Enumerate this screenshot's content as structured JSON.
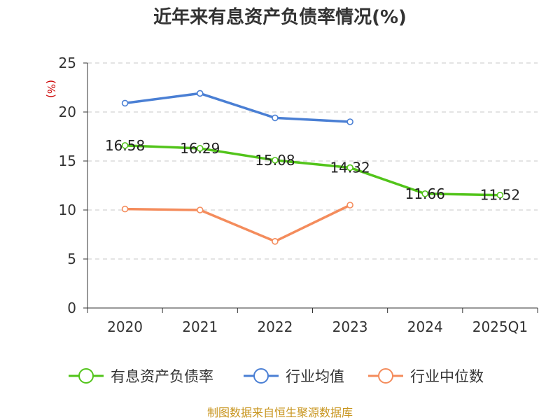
{
  "chart_data": {
    "type": "line",
    "title": "近年来有息资产负债率情况(%)",
    "ylabel": "(%)",
    "xlabel": "",
    "ylim": [
      0,
      25
    ],
    "yticks": [
      0,
      5,
      10,
      15,
      20,
      25
    ],
    "grid": true,
    "categories": [
      "2020",
      "2021",
      "2022",
      "2023",
      "2024",
      "2025Q1"
    ],
    "series": [
      {
        "name": "有息资产负债率",
        "color": "#52c41a",
        "values": [
          16.58,
          16.29,
          15.08,
          14.32,
          11.66,
          11.52
        ],
        "data_labels": [
          "16.58",
          "16.29",
          "15.08",
          "14.32",
          "11.66",
          "11.52"
        ]
      },
      {
        "name": "行业均值",
        "color": "#4a7fd4",
        "values": [
          20.9,
          21.9,
          19.4,
          19.0,
          null,
          null
        ]
      },
      {
        "name": "行业中位数",
        "color": "#f48c5c",
        "values": [
          10.1,
          10.0,
          6.8,
          10.5,
          null,
          null
        ]
      }
    ],
    "legend_position": "bottom",
    "source": "制图数据来自恒生聚源数据库"
  }
}
